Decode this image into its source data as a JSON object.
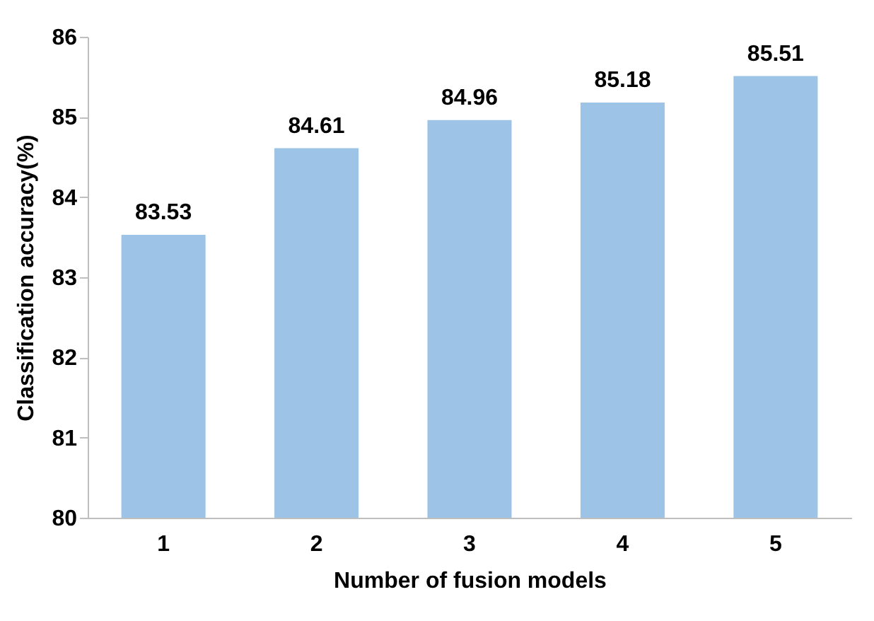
{
  "chart_data": {
    "type": "bar",
    "xlabel": "Number of fusion models",
    "ylabel": "Classification accuracy(%)",
    "categories": [
      "1",
      "2",
      "3",
      "4",
      "5"
    ],
    "values": [
      83.53,
      84.61,
      84.96,
      85.18,
      85.51
    ],
    "color": "#9dc3e6",
    "ylim": [
      80,
      86
    ],
    "yticks": [
      80,
      81,
      82,
      83,
      84,
      85,
      86
    ],
    "data_labels": true
  }
}
